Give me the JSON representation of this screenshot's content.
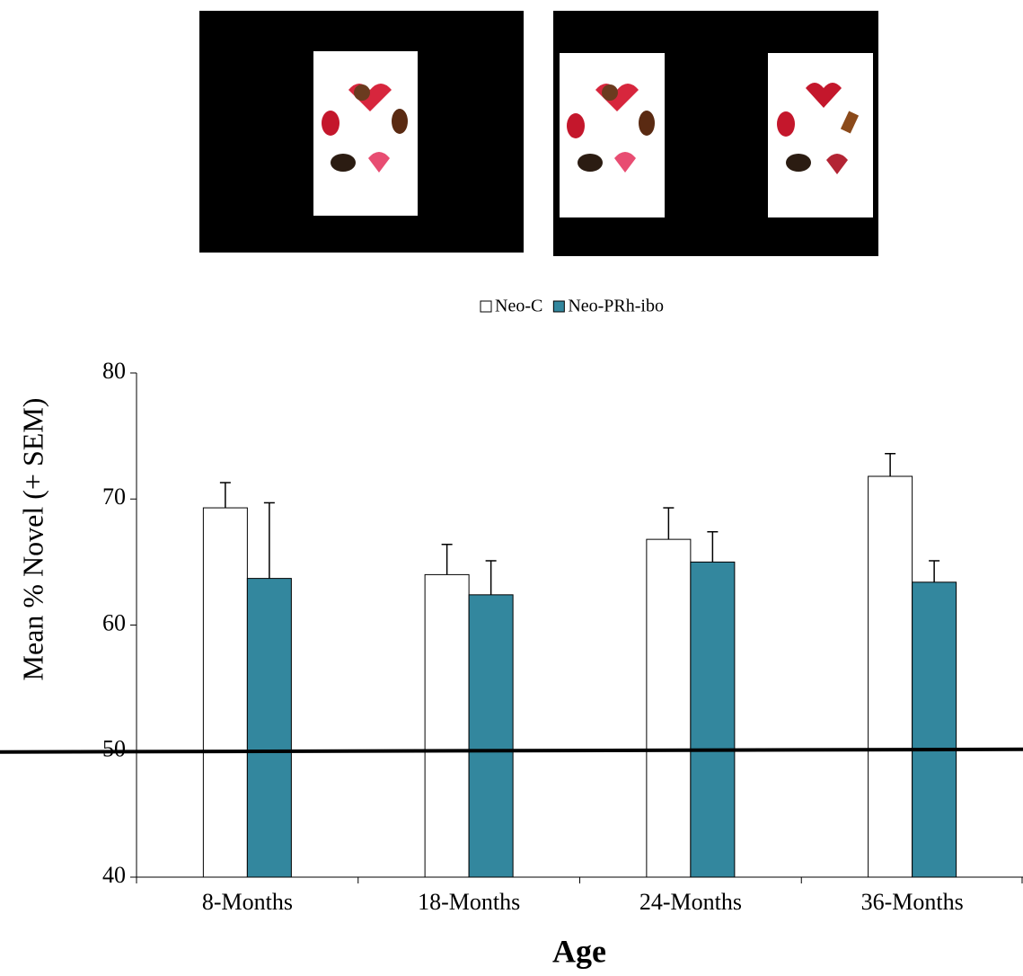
{
  "chart_data": {
    "type": "bar",
    "categories": [
      "8-Months",
      "18-Months",
      "24-Months",
      "36-Months"
    ],
    "series": [
      {
        "name": "Neo-C",
        "color": "#ffffff",
        "values": [
          69.3,
          64.0,
          66.8,
          71.8
        ],
        "errors": [
          2.0,
          2.4,
          2.5,
          1.8
        ]
      },
      {
        "name": "Neo-PRh-ibo",
        "color": "#33879e",
        "values": [
          63.7,
          62.4,
          65.0,
          63.4
        ],
        "errors": [
          6.0,
          2.7,
          2.4,
          1.7
        ]
      }
    ],
    "ylabel": "Mean % Novel (+ SEM)",
    "xlabel": "Age",
    "ylim": [
      40,
      80
    ],
    "yticks": [
      40,
      50,
      60,
      70,
      80
    ],
    "reference_line": 50,
    "legend": "top"
  }
}
